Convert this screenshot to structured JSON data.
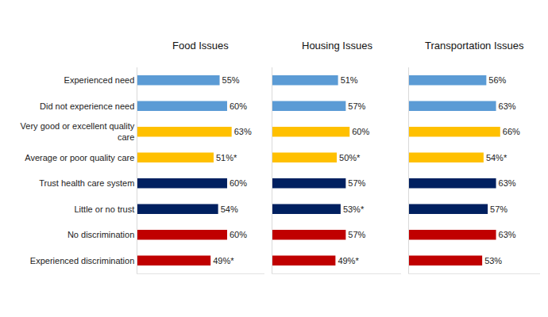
{
  "chart_data": [
    {
      "type": "bar",
      "title": "Food Issues",
      "orientation": "horizontal",
      "data_labels": true,
      "tick_labels": "y",
      "categories": [
        "Experienced need",
        "Did not experience need",
        "Very good or excellent quality care",
        "Average or poor quality care",
        "Trust health care system",
        "Little or no trust",
        "No discrimination",
        "Experienced discrimination"
      ],
      "values": [
        55,
        60,
        63,
        51,
        60,
        54,
        60,
        49
      ],
      "value_labels": [
        "55%",
        "60%",
        "63%",
        "51%*",
        "60%",
        "54%",
        "60%",
        "49%*"
      ],
      "colors": [
        "#5b9bd5",
        "#5b9bd5",
        "#ffc000",
        "#ffc000",
        "#002060",
        "#002060",
        "#c00000",
        "#c00000"
      ],
      "xlim": [
        0,
        85
      ],
      "xticks": []
    },
    {
      "type": "bar",
      "title": "Housing Issues",
      "orientation": "horizontal",
      "data_labels": true,
      "tick_labels": false,
      "categories": [
        "Experienced need",
        "Did not experience need",
        "Very good or excellent quality care",
        "Average or poor quality care",
        "Trust health care system",
        "Little or no trust",
        "No discrimination",
        "Experienced discrimination"
      ],
      "values": [
        51,
        57,
        60,
        50,
        57,
        53,
        57,
        49
      ],
      "value_labels": [
        "51%",
        "57%",
        "60%",
        "50%*",
        "57%",
        "53%*",
        "57%",
        "49%*"
      ],
      "colors": [
        "#5b9bd5",
        "#5b9bd5",
        "#ffc000",
        "#ffc000",
        "#002060",
        "#002060",
        "#c00000",
        "#c00000"
      ],
      "xlim": [
        0,
        100
      ],
      "xticks": []
    },
    {
      "type": "bar",
      "title": "Transportation Issues",
      "orientation": "horizontal",
      "data_labels": true,
      "tick_labels": false,
      "categories": [
        "Experienced need",
        "Did not experience need",
        "Very good or excellent quality care",
        "Average or poor quality care",
        "Trust health care system",
        "Little or no trust",
        "No discrimination",
        "Experienced discrimination"
      ],
      "values": [
        56,
        63,
        66,
        54,
        63,
        57,
        63,
        53
      ],
      "value_labels": [
        "56%",
        "63%",
        "66%",
        "54%*",
        "63%",
        "57%",
        "63%",
        "53%"
      ],
      "colors": [
        "#5b9bd5",
        "#5b9bd5",
        "#ffc000",
        "#ffc000",
        "#002060",
        "#002060",
        "#c00000",
        "#c00000"
      ],
      "xlim": [
        0,
        95
      ],
      "xticks": []
    }
  ]
}
